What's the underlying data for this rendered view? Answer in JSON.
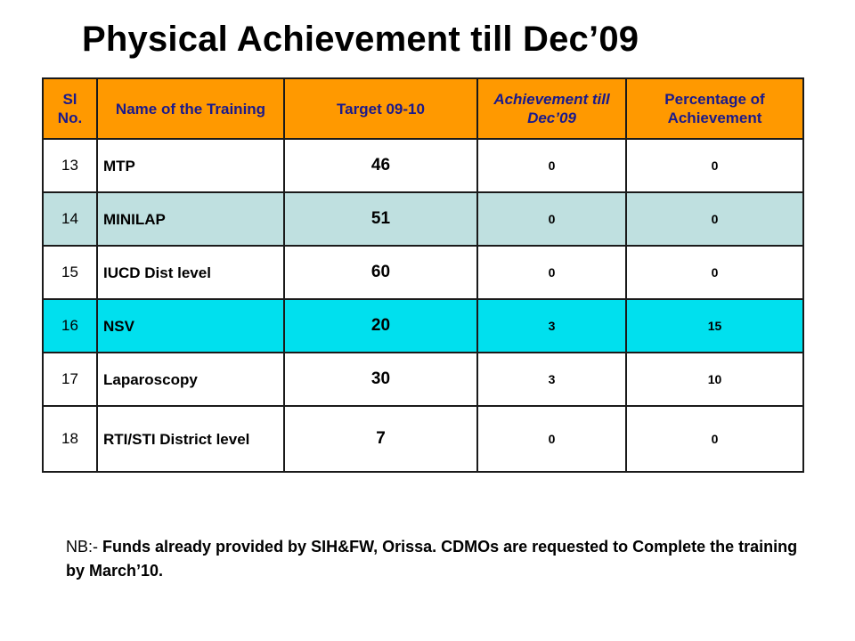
{
  "title": "Physical Achievement till Dec’09",
  "table": {
    "headers": {
      "sl": "Sl No.",
      "name": "Name of the Training",
      "target": "Target 09-10",
      "achievement": "Achievement till Dec’09",
      "percentage": "Percentage of Achievement"
    },
    "rows": [
      {
        "sl": "13",
        "name": "MTP",
        "target": "46",
        "achievement": "0",
        "percentage": "0"
      },
      {
        "sl": "14",
        "name": "MINILAP",
        "target": "51",
        "achievement": "0",
        "percentage": "0"
      },
      {
        "sl": "15",
        "name": "IUCD Dist level",
        "target": "60",
        "achievement": "0",
        "percentage": "0"
      },
      {
        "sl": "16",
        "name": "NSV",
        "target": "20",
        "achievement": "3",
        "percentage": "15"
      },
      {
        "sl": "17",
        "name": "Laparoscopy",
        "target": "30",
        "achievement": "3",
        "percentage": "10"
      },
      {
        "sl": "18",
        "name": "RTI/STI District level",
        "target": "7",
        "achievement": "0",
        "percentage": "0"
      }
    ]
  },
  "note": {
    "prefix": "NB:- ",
    "text": "Funds already provided by SIH&FW, Orissa. CDMOs are requested to Complete the training by March’10."
  },
  "colors": {
    "header_bg": "#ff9900",
    "header_text": "#1a1a8c",
    "row_light_blue": "#bfe0e0",
    "row_cyan": "#00e0ee"
  }
}
